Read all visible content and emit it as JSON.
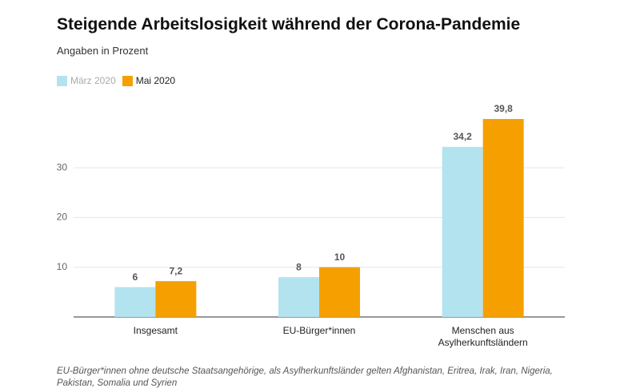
{
  "chart_data": {
    "type": "bar",
    "title": "Steigende Arbeitslosigkeit während der Corona-Pandemie",
    "subtitle": "Angaben in Prozent",
    "categories": [
      "Insgesamt",
      "EU-Bürger*innen",
      "Menschen aus Asylherkunftsländern"
    ],
    "series": [
      {
        "name": "März 2020",
        "color": "#b3e3ef",
        "values": [
          6,
          8,
          34.2
        ],
        "value_labels": [
          "6",
          "8",
          "34,2"
        ]
      },
      {
        "name": "Mai 2020",
        "color": "#f5a000",
        "values": [
          7.2,
          10,
          39.8
        ],
        "value_labels": [
          "7,2",
          "10",
          "39,8"
        ]
      }
    ],
    "ylim": [
      0,
      40
    ],
    "yticks": [
      10,
      20,
      30
    ],
    "grid": true,
    "legend": "top-left",
    "note": "EU-Bürger*innen ohne deutsche Staatsangehörige, als Asylherkunftsländer gelten Afghanistan, Eritrea, Irak, Iran, Nigeria, Pakistan, Somalia und Syrien"
  }
}
